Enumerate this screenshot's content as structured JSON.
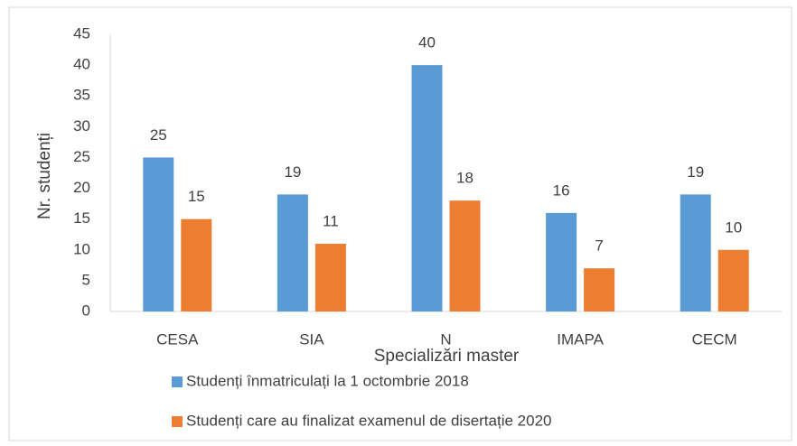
{
  "chart_data": {
    "type": "bar",
    "categories": [
      "CESA",
      "SIA",
      "N",
      "IMAPA",
      "CECM"
    ],
    "series": [
      {
        "name": "Studenți înmatriculați la 1 octombrie 2018",
        "color": "#5b9bd5",
        "values": [
          25,
          19,
          40,
          16,
          19
        ]
      },
      {
        "name": "Studenți care au finalizat examenul de disertație 2020",
        "color": "#ed7d31",
        "values": [
          15,
          11,
          18,
          7,
          10
        ]
      }
    ],
    "x_label": "Specializări master",
    "y_label": "Nr. studenți",
    "ylim": [
      0,
      45
    ],
    "yticks": [
      0,
      5,
      10,
      15,
      20,
      25,
      30,
      35,
      40,
      45
    ],
    "grid": false
  }
}
